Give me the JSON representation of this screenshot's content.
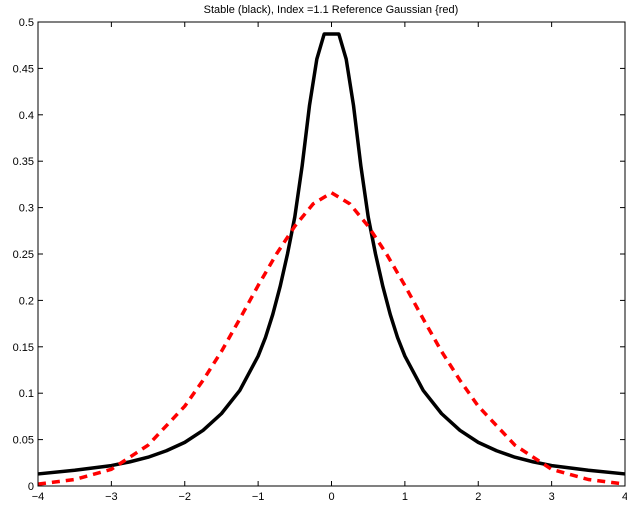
{
  "chart_data": {
    "type": "line",
    "title": "Stable (black), Index =1.1 Reference Gaussian {red)",
    "xlabel": "",
    "ylabel": "",
    "xlim": [
      -4,
      4
    ],
    "ylim": [
      0,
      0.5
    ],
    "grid": false,
    "xticks": [
      -4,
      -3,
      -2,
      -1,
      0,
      1,
      2,
      3,
      4
    ],
    "xtick_labels": [
      "−4",
      "−3",
      "−2",
      "−1",
      "0",
      "1",
      "2",
      "3",
      "4"
    ],
    "yticks": [
      0,
      0.05,
      0.1,
      0.15,
      0.2,
      0.25,
      0.3,
      0.35,
      0.4,
      0.45,
      0.5
    ],
    "ytick_labels": [
      "0",
      "0.05",
      "0.1",
      "0.15",
      "0.2",
      "0.25",
      "0.3",
      "0.35",
      "0.4",
      "0.45",
      "0.5"
    ],
    "series": [
      {
        "color": "#000000",
        "line_style": "solid",
        "x": [
          -4,
          -3.5,
          -3,
          -2.75,
          -2.5,
          -2.25,
          -2,
          -1.75,
          -1.5,
          -1.25,
          -1,
          -0.9,
          -0.8,
          -0.7,
          -0.6,
          -0.5,
          -0.4,
          -0.3,
          -0.2,
          -0.1,
          0,
          0.1,
          0.2,
          0.3,
          0.4,
          0.5,
          0.6,
          0.7,
          0.8,
          0.9,
          1,
          1.25,
          1.5,
          1.75,
          2,
          2.25,
          2.5,
          2.75,
          3,
          3.5,
          4
        ],
        "y": [
          0.013,
          0.017,
          0.022,
          0.026,
          0.031,
          0.038,
          0.047,
          0.06,
          0.078,
          0.103,
          0.14,
          0.16,
          0.185,
          0.215,
          0.25,
          0.29,
          0.345,
          0.41,
          0.46,
          0.487,
          0.487,
          0.487,
          0.46,
          0.41,
          0.345,
          0.29,
          0.25,
          0.215,
          0.185,
          0.16,
          0.14,
          0.103,
          0.078,
          0.06,
          0.047,
          0.038,
          0.031,
          0.026,
          0.022,
          0.017,
          0.013
        ]
      },
      {
        "color": "#ff0000",
        "line_style": "dashed",
        "x": [
          -4,
          -3.5,
          -3,
          -2.5,
          -2,
          -1.75,
          -1.5,
          -1.25,
          -1,
          -0.75,
          -0.5,
          -0.25,
          0,
          0.25,
          0.5,
          0.75,
          1,
          1.25,
          1.5,
          1.75,
          2,
          2.5,
          3,
          3.5,
          4
        ],
        "y": [
          0.002,
          0.007,
          0.018,
          0.044,
          0.086,
          0.114,
          0.145,
          0.18,
          0.216,
          0.25,
          0.28,
          0.304,
          0.316,
          0.304,
          0.28,
          0.25,
          0.216,
          0.18,
          0.145,
          0.114,
          0.086,
          0.044,
          0.018,
          0.007,
          0.002
        ]
      }
    ]
  }
}
